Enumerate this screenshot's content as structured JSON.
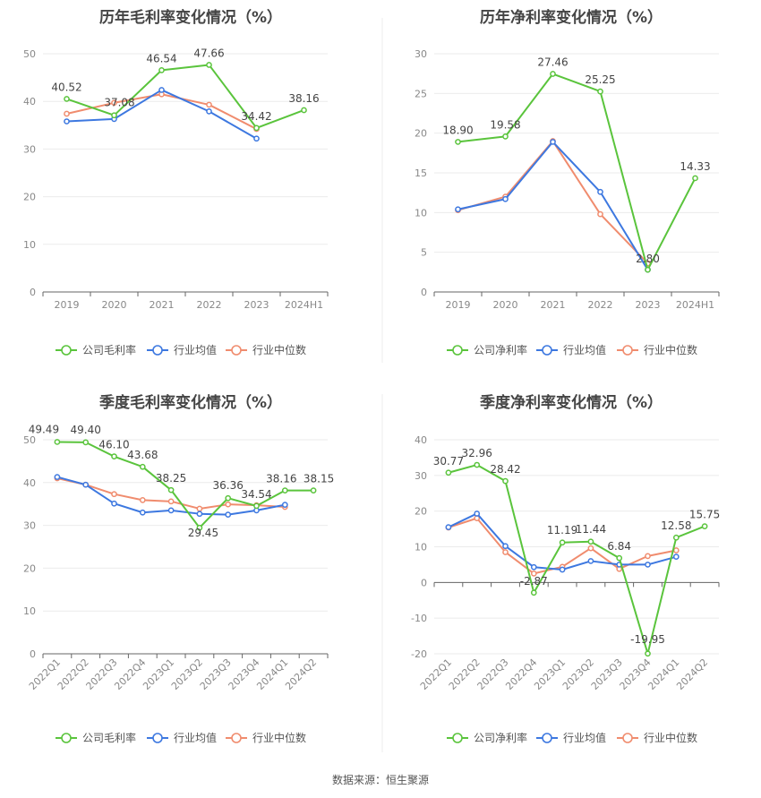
{
  "source": "数据来源：恒生聚源",
  "colors": {
    "company": "#5ac43c",
    "industry_avg": "#3d78e0",
    "industry_median": "#f08c6e"
  },
  "chart_data": [
    {
      "type": "line",
      "title": "历年毛利率变化情况（%）",
      "categories": [
        "2019",
        "2020",
        "2021",
        "2022",
        "2023",
        "2024H1"
      ],
      "ylim": [
        0,
        50
      ],
      "yticks": [
        0,
        10,
        20,
        30,
        40,
        50
      ],
      "grid": true,
      "legend_position": "bottom",
      "series": [
        {
          "name": "公司毛利率",
          "color": "#5ac43c",
          "values": [
            40.52,
            37.08,
            46.54,
            47.66,
            34.42,
            38.16
          ],
          "labels": [
            "40.52",
            "37.08",
            "46.54",
            "47.66",
            "34.42",
            "38.16"
          ]
        },
        {
          "name": "行业均值",
          "color": "#3d78e0",
          "values": [
            35.8,
            36.3,
            42.4,
            37.9,
            32.2,
            null
          ]
        },
        {
          "name": "行业中位数",
          "color": "#f08c6e",
          "values": [
            37.4,
            39.7,
            41.5,
            39.3,
            34.2,
            null
          ]
        }
      ]
    },
    {
      "type": "line",
      "title": "历年净利率变化情况（%）",
      "categories": [
        "2019",
        "2020",
        "2021",
        "2022",
        "2023",
        "2024H1"
      ],
      "ylim": [
        0,
        30
      ],
      "yticks": [
        0,
        5,
        10,
        15,
        20,
        25,
        30
      ],
      "grid": true,
      "legend_position": "bottom",
      "series": [
        {
          "name": "公司净利率",
          "color": "#5ac43c",
          "values": [
            18.9,
            19.58,
            27.46,
            25.25,
            2.8,
            14.33
          ],
          "labels": [
            "18.90",
            "19.58",
            "27.46",
            "25.25",
            "2.80",
            "14.33"
          ]
        },
        {
          "name": "行业均值",
          "color": "#3d78e0",
          "values": [
            10.4,
            11.7,
            18.9,
            12.6,
            2.8,
            null
          ]
        },
        {
          "name": "行业中位数",
          "color": "#f08c6e",
          "values": [
            10.3,
            12.0,
            19.0,
            9.8,
            3.6,
            null
          ]
        }
      ]
    },
    {
      "type": "line",
      "title": "季度毛利率变化情况（%）",
      "categories": [
        "2022Q1",
        "2022Q2",
        "2022Q3",
        "2022Q4",
        "2023Q1",
        "2023Q2",
        "2023Q3",
        "2023Q4",
        "2024Q1",
        "2024Q2"
      ],
      "ylim": [
        0,
        50
      ],
      "yticks": [
        0,
        10,
        20,
        30,
        40,
        50
      ],
      "grid": true,
      "legend_position": "bottom",
      "series": [
        {
          "name": "公司毛利率",
          "color": "#5ac43c",
          "values": [
            49.49,
            49.4,
            46.1,
            43.68,
            38.25,
            29.45,
            36.36,
            34.54,
            38.16,
            38.15
          ],
          "labels": [
            "49.49",
            "49.40",
            "46.10",
            "43.68",
            "38.25",
            "29.45",
            "36.36",
            "34.54",
            "38.16",
            "38.15"
          ]
        },
        {
          "name": "行业均值",
          "color": "#3d78e0",
          "values": [
            41.3,
            39.5,
            35.1,
            33.0,
            33.5,
            32.7,
            32.5,
            33.5,
            34.8,
            null
          ]
        },
        {
          "name": "行业中位数",
          "color": "#f08c6e",
          "values": [
            41.0,
            39.5,
            37.3,
            35.9,
            35.6,
            33.9,
            34.9,
            34.7,
            34.3,
            null
          ]
        }
      ]
    },
    {
      "type": "line",
      "title": "季度净利率变化情况（%）",
      "categories": [
        "2022Q1",
        "2022Q2",
        "2022Q3",
        "2022Q4",
        "2023Q1",
        "2023Q2",
        "2023Q3",
        "2023Q4",
        "2024Q1",
        "2024Q2"
      ],
      "ylim": [
        -20,
        40
      ],
      "yticks": [
        -20,
        -10,
        0,
        10,
        20,
        30,
        40
      ],
      "grid": true,
      "legend_position": "bottom",
      "series": [
        {
          "name": "公司净利率",
          "color": "#5ac43c",
          "values": [
            30.77,
            32.96,
            28.42,
            -2.87,
            11.19,
            11.44,
            6.84,
            -19.95,
            12.58,
            15.75
          ],
          "labels": [
            "30.77",
            "32.96",
            "28.42",
            "-2.87",
            "11.19",
            "11.44",
            "6.84",
            "-19.95",
            "12.58",
            "15.75"
          ]
        },
        {
          "name": "行业均值",
          "color": "#3d78e0",
          "values": [
            15.5,
            19.3,
            10.2,
            4.3,
            3.6,
            6.0,
            5.0,
            5.0,
            7.2,
            null
          ]
        },
        {
          "name": "行业中位数",
          "color": "#f08c6e",
          "values": [
            15.4,
            18.0,
            8.5,
            2.5,
            4.4,
            9.6,
            3.8,
            7.4,
            9.0,
            null
          ]
        }
      ]
    }
  ]
}
